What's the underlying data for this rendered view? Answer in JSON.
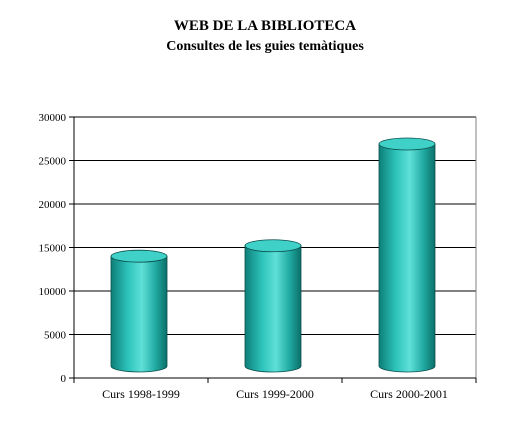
{
  "chart_data": {
    "type": "bar",
    "title": "WEB DE LA BIBLIOTECA",
    "subtitle": "Consultes de les guies temàtiques",
    "categories": [
      "Curs 1998-1999",
      "Curs 1999-2000",
      "Curs 2000-2001"
    ],
    "values": [
      14000,
      15200,
      26900
    ],
    "ylim": [
      0,
      30000
    ],
    "yticks": [
      0,
      5000,
      10000,
      15000,
      20000,
      25000,
      30000
    ],
    "xlabel": "",
    "ylabel": "",
    "grid": true,
    "legend": "none",
    "bar_style": "3d-cylinder",
    "colors": {
      "bar": "#20B2AA",
      "bar_top": "#3FD0C8",
      "grid": "#000000"
    }
  }
}
